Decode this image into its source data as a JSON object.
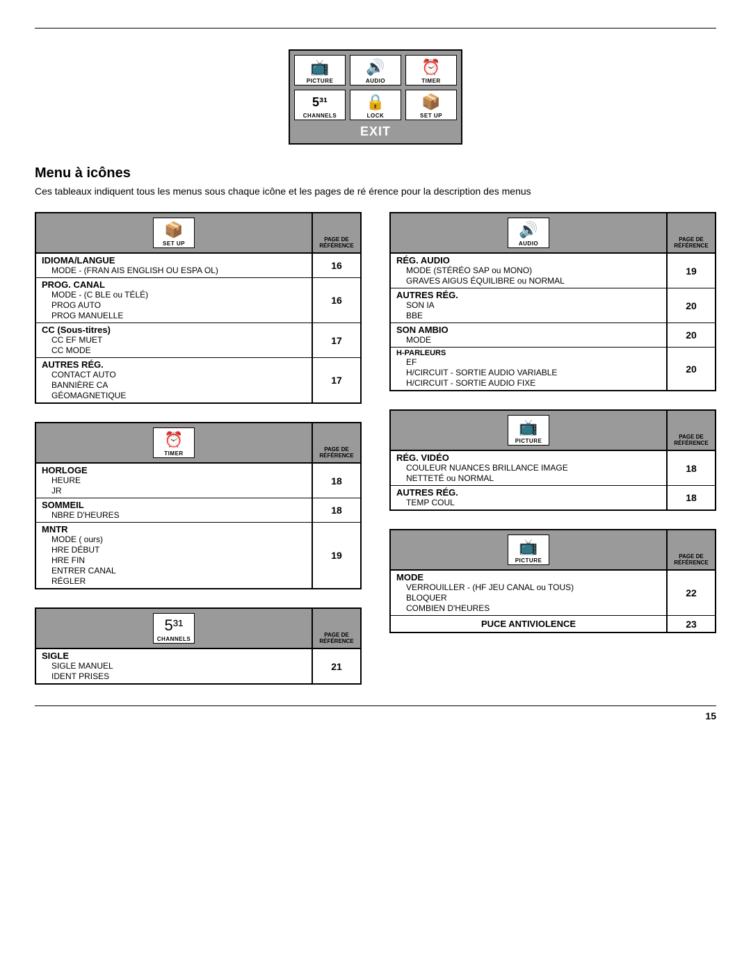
{
  "page_number": "15",
  "icon_menu": {
    "cells": [
      {
        "glyph": "📺",
        "caption": "PICTURE"
      },
      {
        "glyph": "🔊",
        "caption": "AUDIO"
      },
      {
        "glyph": "⏰",
        "caption": "TIMER"
      },
      {
        "glyph": "5³¹",
        "caption": "CHANNELS"
      },
      {
        "glyph": "🔒",
        "caption": "LOCK"
      },
      {
        "glyph": "📦",
        "caption": "SET UP"
      }
    ],
    "exit_label": "EXIT"
  },
  "section_title": "Menu à icônes",
  "section_desc": "Ces tableaux indiquent tous les menus sous chaque icône et les pages de ré érence pour la description des menus",
  "ref_label_line1": "PAGE DE",
  "ref_label_line2": "RÉFÉRENCE",
  "tables": {
    "setup": {
      "icon_glyph": "📦",
      "icon_caption": "SET UP",
      "rows": [
        {
          "title": "IDIOMA/LANGUE",
          "subs": [
            "MODE - (FRAN AIS  ENGLISH OU ESPA OL)"
          ],
          "page": "16"
        },
        {
          "title": "PROG. CANAL",
          "subs": [
            "MODE - (C BLE ou TÉLÉ)",
            "PROG  AUTO",
            "PROG  MANUELLE"
          ],
          "page": "16"
        },
        {
          "title": "CC (Sous-titres)",
          "subs": [
            "CC EF  MUET",
            "CC MODE"
          ],
          "page": "17"
        },
        {
          "title": "AUTRES RÉG.",
          "subs": [
            "CONTACT AUTO",
            "BANNIÈRE CA",
            "GÉOMAGNETIQUE"
          ],
          "page": "17"
        }
      ]
    },
    "timer": {
      "icon_glyph": "⏰",
      "icon_caption": "TIMER",
      "rows": [
        {
          "title": "HORLOGE",
          "subs": [
            "HEURE",
            "JR"
          ],
          "page": "18"
        },
        {
          "title": "SOMMEIL",
          "subs": [
            "NBRE D'HEURES"
          ],
          "page": "18"
        },
        {
          "title": "MNTR",
          "subs": [
            "MODE ( ours)",
            "HRE DÉBUT",
            "HRE FIN",
            "ENTRER CANAL",
            "RÉGLER"
          ],
          "page": "19"
        }
      ]
    },
    "channels": {
      "icon_glyph": "5³¹",
      "icon_caption": "CHANNELS",
      "rows": [
        {
          "title": "SIGLE",
          "subs": [
            "SIGLE MANUEL",
            "IDENT  PRISES"
          ],
          "page": "21"
        }
      ]
    },
    "audio": {
      "icon_glyph": "🔊",
      "icon_caption": "AUDIO",
      "rows": [
        {
          "title": "RÉG. AUDIO",
          "subs": [
            "MODE (STÉRÉO  SAP ou MONO)",
            "GRAVES  AIGUS  ÉQUILIBRE ou NORMAL"
          ],
          "page": "19"
        },
        {
          "title": "AUTRES RÉG.",
          "subs": [
            "SON IA",
            "BBE"
          ],
          "page": "20"
        },
        {
          "title": "SON AMBIO",
          "subs": [
            "MODE"
          ],
          "page": "20"
        },
        {
          "title": "H-PARLEURS",
          "title_small": true,
          "subs": [
            "EF",
            "H/CIRCUIT - SORTIE AUDIO VARIABLE",
            "H/CIRCUIT - SORTIE AUDIO FIXE"
          ],
          "page": "20"
        }
      ]
    },
    "picture_video": {
      "icon_glyph": "📺",
      "icon_caption": "PICTURE",
      "rows": [
        {
          "title": "RÉG. VIDÉO",
          "subs": [
            "COULEUR  NUANCES  BRILLANCE  IMAGE",
            "NETTETÉ ou NORMAL"
          ],
          "page": "18"
        },
        {
          "title": "AUTRES RÉG.",
          "subs": [
            "TEMP  COUL"
          ],
          "page": "18"
        }
      ]
    },
    "picture_mode": {
      "icon_glyph": "📺",
      "icon_caption": "PICTURE",
      "rows": [
        {
          "title": "MODE",
          "subs": [
            "VERROUILLER - (HF  JEU  CANAL ou TOUS)",
            "BLOQUER",
            "COMBIEN D'HEURES"
          ],
          "page": "22"
        },
        {
          "centered_title": "PUCE ANTIVIOLENCE",
          "page": "23"
        }
      ]
    }
  }
}
